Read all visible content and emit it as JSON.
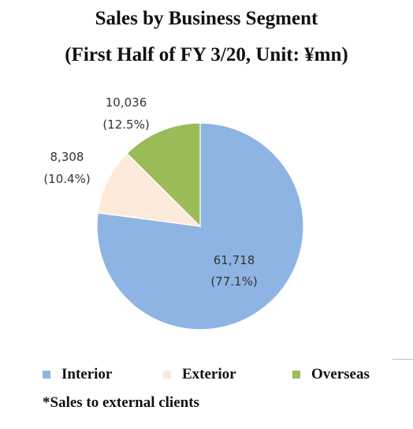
{
  "chart_data": {
    "type": "pie",
    "title": "Sales by Business Segment",
    "subtitle": "(First Half of FY 3/20, Unit: ¥mn)",
    "slices": [
      {
        "name": "Interior",
        "value": 61718,
        "value_label": "61,718",
        "percent_label": "(77.1%)",
        "color": "#8EB4E3"
      },
      {
        "name": "Exterior",
        "value": 8308,
        "value_label": "8,308",
        "percent_label": "(10.4%)",
        "color": "#FDEADA"
      },
      {
        "name": "Overseas",
        "value": 10036,
        "value_label": "10,036",
        "percent_label": "(12.5%)",
        "color": "#9BBB59"
      }
    ],
    "start_angle_deg": 0,
    "direction": "clockwise",
    "legend_position": "bottom"
  },
  "footnote": "*Sales to external clients"
}
